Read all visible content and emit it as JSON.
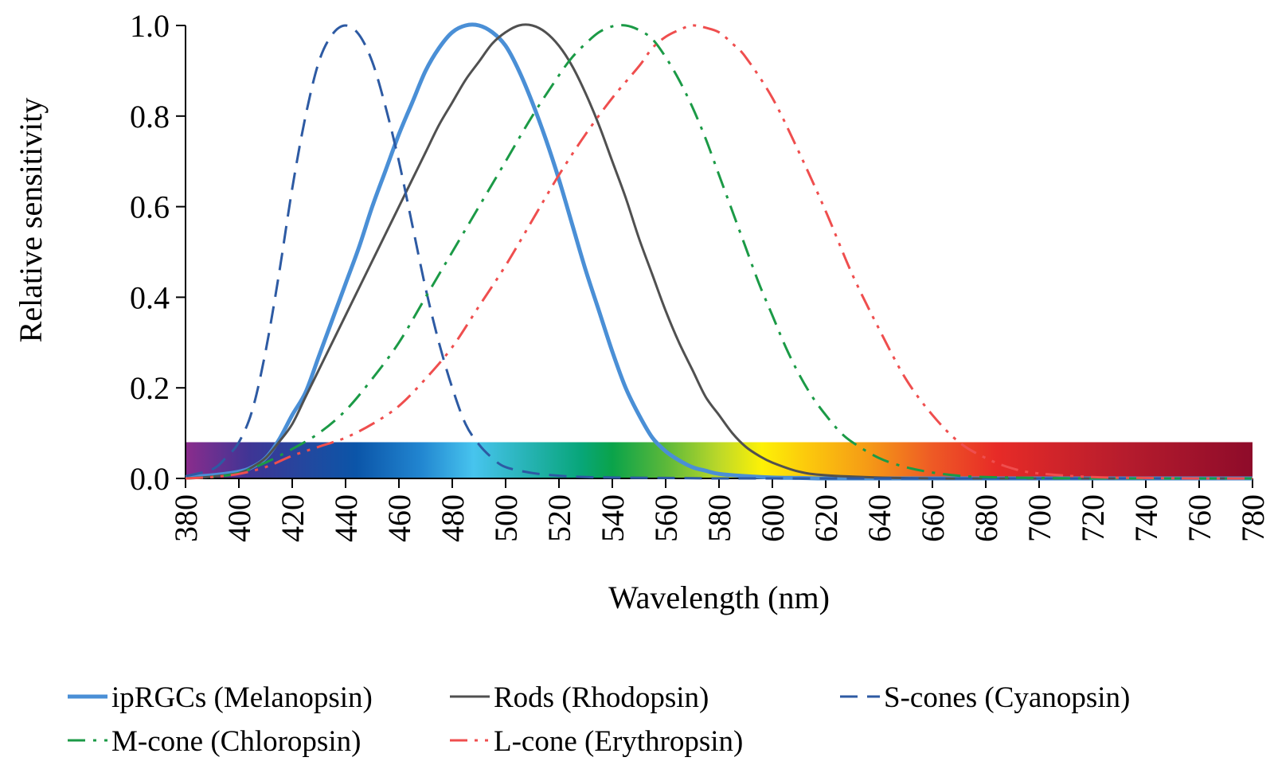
{
  "chart_data": {
    "type": "line",
    "title": "",
    "xlabel": "Wavelength (nm)",
    "ylabel": "Relative sensitivity",
    "xlim": [
      380,
      780
    ],
    "ylim": [
      0,
      1
    ],
    "x_ticks": [
      "380",
      "400",
      "420",
      "440",
      "460",
      "480",
      "500",
      "520",
      "540",
      "560",
      "580",
      "600",
      "620",
      "640",
      "660",
      "680",
      "700",
      "720",
      "740",
      "760",
      "780"
    ],
    "y_ticks": [
      "0.0",
      "0.2",
      "0.4",
      "0.6",
      "0.8",
      "1.0"
    ],
    "grid": false,
    "legend_position": "bottom",
    "spectrum_band": {
      "from": 380,
      "to": 780,
      "height": 0.08
    },
    "series": [
      {
        "name": "ipRGCs (Melanopsin)",
        "color": "#4a8fd6",
        "dash": "solid",
        "width": 5,
        "x": [
          380,
          390,
          400,
          405,
          410,
          415,
          420,
          425,
          430,
          435,
          440,
          445,
          450,
          455,
          460,
          465,
          470,
          475,
          480,
          485,
          490,
          495,
          500,
          505,
          510,
          515,
          520,
          525,
          530,
          535,
          540,
          545,
          550,
          555,
          560,
          565,
          570,
          575,
          580,
          590,
          600,
          610,
          620,
          640,
          660,
          680,
          700,
          720,
          740,
          760,
          780
        ],
        "y": [
          0.003,
          0.007,
          0.015,
          0.025,
          0.045,
          0.085,
          0.14,
          0.19,
          0.27,
          0.35,
          0.43,
          0.51,
          0.6,
          0.68,
          0.76,
          0.83,
          0.9,
          0.95,
          0.985,
          1.0,
          1.0,
          0.985,
          0.955,
          0.9,
          0.83,
          0.75,
          0.66,
          0.56,
          0.46,
          0.37,
          0.28,
          0.2,
          0.14,
          0.09,
          0.06,
          0.04,
          0.025,
          0.017,
          0.01,
          0.005,
          0.002,
          0.001,
          0,
          0,
          0,
          0,
          0,
          0,
          0,
          0,
          0
        ]
      },
      {
        "name": "Rods (Rhodopsin)",
        "color": "#505050",
        "dash": "solid",
        "width": 3,
        "x": [
          380,
          390,
          400,
          405,
          410,
          415,
          420,
          425,
          430,
          435,
          440,
          445,
          450,
          455,
          460,
          465,
          470,
          475,
          480,
          485,
          490,
          495,
          500,
          505,
          510,
          515,
          520,
          525,
          530,
          535,
          540,
          545,
          550,
          555,
          560,
          565,
          570,
          575,
          580,
          585,
          590,
          595,
          600,
          610,
          620,
          640,
          660,
          680,
          700,
          720,
          740,
          760,
          780
        ],
        "y": [
          0,
          0.004,
          0.012,
          0.025,
          0.045,
          0.08,
          0.12,
          0.18,
          0.24,
          0.3,
          0.36,
          0.42,
          0.48,
          0.54,
          0.6,
          0.66,
          0.72,
          0.78,
          0.83,
          0.88,
          0.92,
          0.96,
          0.985,
          1.0,
          1.0,
          0.985,
          0.955,
          0.91,
          0.85,
          0.78,
          0.7,
          0.62,
          0.53,
          0.45,
          0.37,
          0.3,
          0.24,
          0.18,
          0.14,
          0.1,
          0.07,
          0.05,
          0.035,
          0.015,
          0.007,
          0.002,
          0,
          0,
          0,
          0,
          0,
          0,
          0
        ]
      },
      {
        "name": "S-cones (Cyanopsin)",
        "color": "#2d5aa3",
        "dash": "long-dash",
        "width": 3,
        "x": [
          380,
          390,
          395,
          400,
          405,
          410,
          415,
          420,
          425,
          430,
          435,
          440,
          445,
          450,
          455,
          460,
          465,
          470,
          475,
          480,
          485,
          490,
          495,
          500,
          510,
          520,
          530,
          540,
          560,
          580,
          600,
          650,
          700,
          780
        ],
        "y": [
          0.005,
          0.02,
          0.045,
          0.08,
          0.15,
          0.28,
          0.45,
          0.64,
          0.8,
          0.92,
          0.98,
          1.0,
          0.98,
          0.92,
          0.82,
          0.7,
          0.56,
          0.42,
          0.3,
          0.2,
          0.12,
          0.075,
          0.045,
          0.025,
          0.012,
          0.006,
          0.003,
          0.002,
          0.001,
          0,
          0,
          0,
          0,
          0
        ]
      },
      {
        "name": "M-cone (Chloropsin)",
        "color": "#1b9a46",
        "dash": "dash-dot",
        "width": 3,
        "x": [
          380,
          390,
          400,
          410,
          420,
          430,
          440,
          450,
          460,
          470,
          480,
          490,
          500,
          510,
          520,
          525,
          530,
          535,
          540,
          545,
          550,
          555,
          560,
          565,
          570,
          575,
          580,
          585,
          590,
          595,
          600,
          605,
          610,
          615,
          620,
          625,
          630,
          640,
          650,
          660,
          670,
          680,
          700,
          720,
          740,
          760,
          780
        ],
        "y": [
          0,
          0.003,
          0.012,
          0.035,
          0.065,
          0.1,
          0.15,
          0.22,
          0.3,
          0.4,
          0.5,
          0.6,
          0.7,
          0.8,
          0.89,
          0.93,
          0.96,
          0.985,
          0.998,
          1.0,
          0.99,
          0.97,
          0.93,
          0.88,
          0.82,
          0.75,
          0.67,
          0.59,
          0.51,
          0.43,
          0.36,
          0.29,
          0.23,
          0.18,
          0.14,
          0.105,
          0.08,
          0.045,
          0.025,
          0.013,
          0.006,
          0.003,
          0.001,
          0,
          0,
          0,
          0
        ]
      },
      {
        "name": "L-cone (Erythropsin)",
        "color": "#ef4e4e",
        "dash": "dash-dot-dot",
        "width": 3,
        "x": [
          380,
          390,
          400,
          410,
          420,
          430,
          440,
          450,
          460,
          470,
          480,
          490,
          500,
          510,
          520,
          530,
          540,
          550,
          555,
          560,
          565,
          570,
          575,
          580,
          585,
          590,
          600,
          610,
          620,
          630,
          640,
          650,
          660,
          670,
          680,
          690,
          700,
          720,
          740,
          760,
          780
        ],
        "y": [
          0,
          0.003,
          0.01,
          0.025,
          0.05,
          0.07,
          0.09,
          0.12,
          0.16,
          0.22,
          0.29,
          0.38,
          0.47,
          0.57,
          0.67,
          0.76,
          0.84,
          0.91,
          0.95,
          0.975,
          0.99,
          1.0,
          0.995,
          0.985,
          0.96,
          0.93,
          0.84,
          0.72,
          0.59,
          0.45,
          0.33,
          0.22,
          0.14,
          0.08,
          0.045,
          0.022,
          0.011,
          0.003,
          0.001,
          0,
          0
        ]
      }
    ]
  }
}
